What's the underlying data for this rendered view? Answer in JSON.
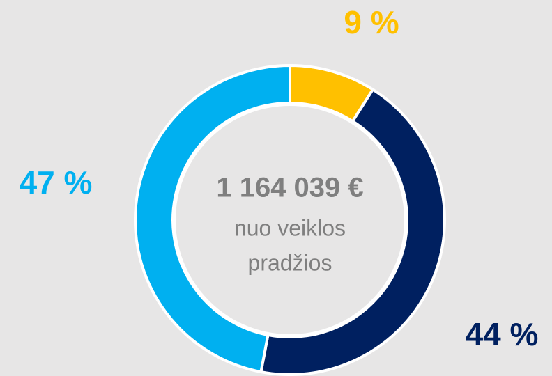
{
  "chart_data": {
    "type": "donut",
    "values": [
      9,
      44,
      47
    ],
    "value_labels": [
      "9 %",
      "44 %",
      "47 %"
    ],
    "colors": [
      "#FFC000",
      "#002060",
      "#00B0F0"
    ],
    "center_title": "1 164 039 €",
    "center_lines": [
      "nuo veiklos",
      "pradžios"
    ]
  }
}
